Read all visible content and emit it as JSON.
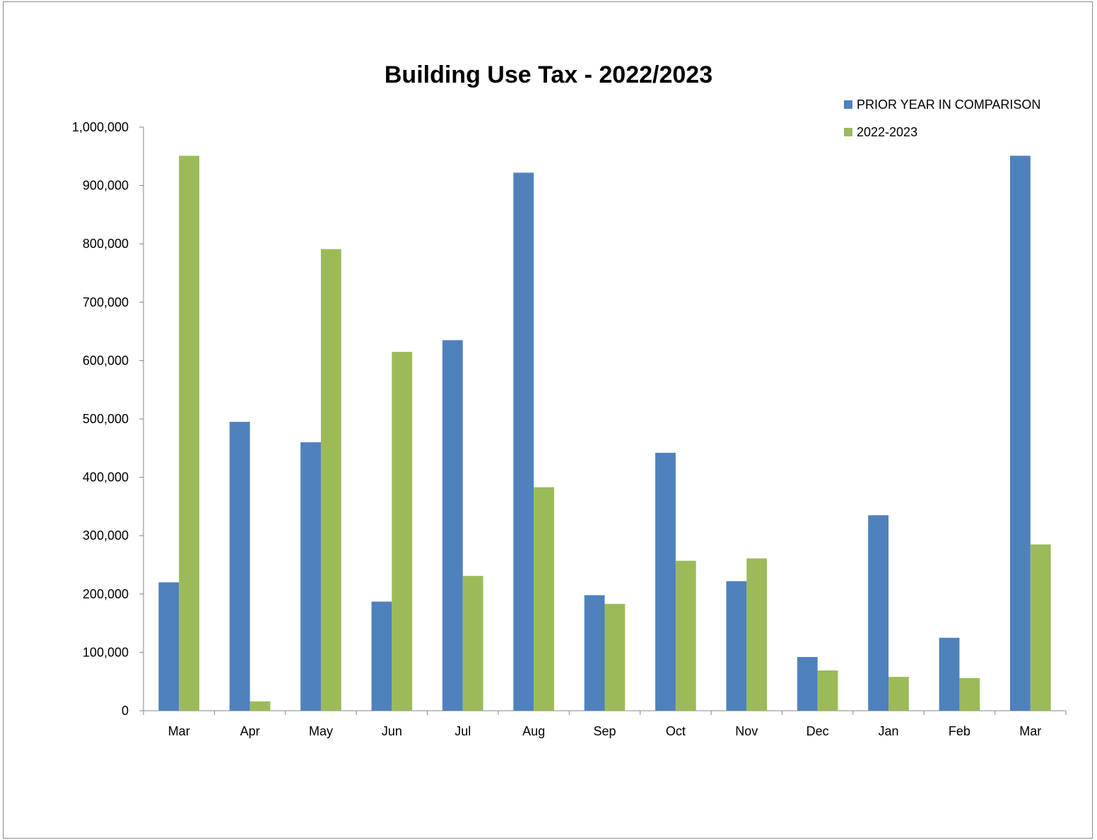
{
  "chart_data": {
    "type": "bar",
    "title": "Building Use Tax - 2022/2023",
    "xlabel": "",
    "ylabel": "",
    "categories": [
      "Mar",
      "Apr",
      "May",
      "Jun",
      "Jul",
      "Aug",
      "Sep",
      "Oct",
      "Nov",
      "Dec",
      "Jan",
      "Feb",
      "Mar"
    ],
    "series": [
      {
        "name": "PRIOR YEAR IN COMPARISON",
        "color": "#4f81bd",
        "values": [
          220000,
          495000,
          460000,
          187000,
          635000,
          922000,
          198000,
          442000,
          222000,
          92000,
          335000,
          125000,
          951000
        ]
      },
      {
        "name": "2022-2023",
        "color": "#9bbb59",
        "values": [
          951000,
          16000,
          791000,
          615000,
          231000,
          383000,
          183000,
          257000,
          261000,
          69000,
          58000,
          56000,
          285000
        ]
      }
    ],
    "ylim": [
      0,
      1000000
    ],
    "yticks": [
      "0",
      "100,000",
      "200,000",
      "300,000",
      "400,000",
      "500,000",
      "600,000",
      "700,000",
      "800,000",
      "900,000",
      "1,000,000"
    ],
    "grid": false,
    "legend_position": "top-right"
  }
}
